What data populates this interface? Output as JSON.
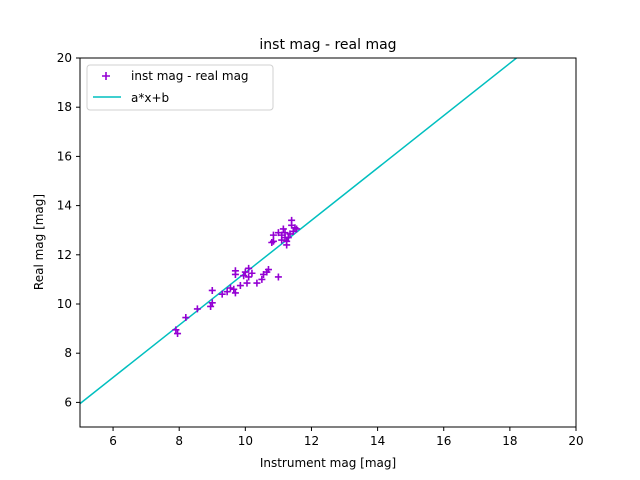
{
  "chart_data": {
    "type": "scatter",
    "title": "inst mag - real mag",
    "xlabel": "Instrument mag [mag]",
    "ylabel": "Real mag [mag]",
    "xlim": [
      5,
      20
    ],
    "ylim": [
      5,
      20
    ],
    "xticks": [
      6,
      8,
      10,
      12,
      14,
      16,
      18,
      20
    ],
    "yticks": [
      6,
      8,
      10,
      12,
      14,
      16,
      18,
      20
    ],
    "grid": false,
    "legend_position": "top-left",
    "series": [
      {
        "name": "inst mag - real mag",
        "kind": "scatter",
        "marker": "plus",
        "color": "#9400d3",
        "points": [
          [
            7.9,
            8.95
          ],
          [
            7.95,
            8.8
          ],
          [
            8.2,
            9.45
          ],
          [
            8.55,
            9.8
          ],
          [
            8.95,
            9.9
          ],
          [
            9.0,
            10.55
          ],
          [
            9.0,
            10.05
          ],
          [
            9.3,
            10.4
          ],
          [
            9.45,
            10.5
          ],
          [
            9.55,
            10.65
          ],
          [
            9.65,
            10.6
          ],
          [
            9.7,
            10.45
          ],
          [
            9.7,
            11.2
          ],
          [
            9.7,
            11.35
          ],
          [
            9.85,
            10.75
          ],
          [
            9.95,
            11.15
          ],
          [
            10.0,
            11.3
          ],
          [
            10.05,
            10.85
          ],
          [
            10.1,
            11.45
          ],
          [
            10.1,
            11.1
          ],
          [
            10.2,
            11.25
          ],
          [
            10.35,
            10.85
          ],
          [
            10.5,
            11.0
          ],
          [
            10.55,
            11.2
          ],
          [
            10.65,
            11.3
          ],
          [
            10.7,
            11.4
          ],
          [
            10.8,
            12.5
          ],
          [
            10.85,
            12.55
          ],
          [
            10.85,
            12.8
          ],
          [
            11.0,
            12.9
          ],
          [
            11.0,
            11.1
          ],
          [
            11.1,
            12.6
          ],
          [
            11.1,
            12.8
          ],
          [
            11.15,
            13.05
          ],
          [
            11.2,
            12.7
          ],
          [
            11.2,
            12.9
          ],
          [
            11.25,
            12.4
          ],
          [
            11.25,
            12.55
          ],
          [
            11.3,
            12.7
          ],
          [
            11.35,
            12.85
          ],
          [
            11.4,
            13.4
          ],
          [
            11.4,
            13.2
          ],
          [
            11.45,
            12.95
          ],
          [
            11.5,
            13.1
          ],
          [
            11.55,
            13.05
          ]
        ]
      },
      {
        "name": "a*x+b",
        "kind": "line",
        "color": "#00bfbf",
        "x": [
          5,
          18.2
        ],
        "y": [
          5.95,
          20.0
        ]
      }
    ]
  }
}
